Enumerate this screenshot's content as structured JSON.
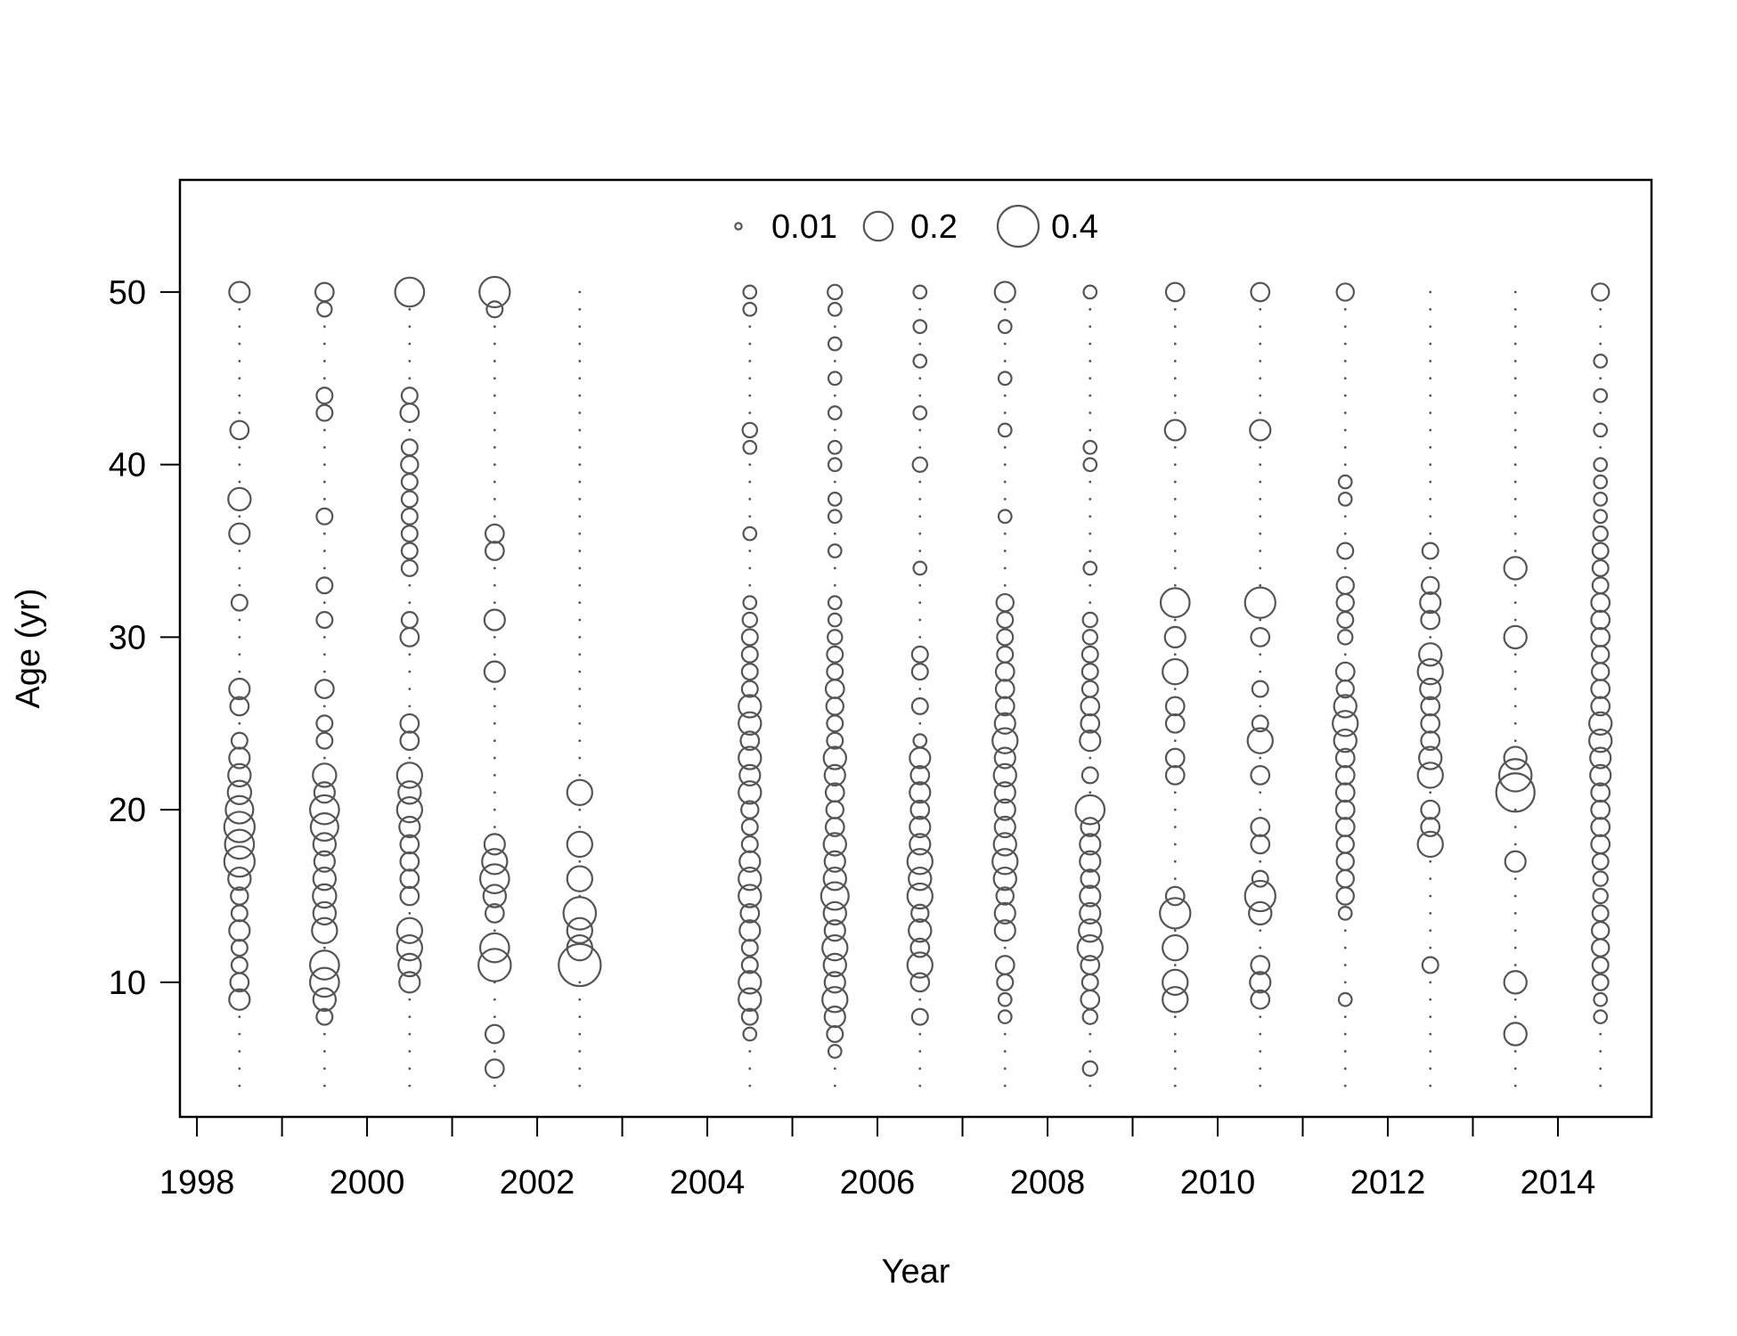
{
  "chart_data": {
    "type": "scatter",
    "subtype": "bubble",
    "title": "",
    "xlabel": "Year",
    "ylabel": "Age (yr)",
    "xlim": [
      1997.8,
      2015.1
    ],
    "ylim": [
      2.2,
      56.5
    ],
    "x_ticks": [
      1998,
      1999,
      2000,
      2001,
      2002,
      2003,
      2004,
      2005,
      2006,
      2007,
      2008,
      2009,
      2010,
      2011,
      2012,
      2013,
      2014
    ],
    "x_tick_labels": [
      "1998",
      "2000",
      "2002",
      "2004",
      "2006",
      "2008",
      "2010",
      "2012",
      "2014"
    ],
    "y_ticks": [
      10,
      20,
      30,
      40,
      50
    ],
    "y_tick_labels": [
      "10",
      "20",
      "30",
      "40",
      "50"
    ],
    "legend": {
      "position": "top",
      "entries": [
        {
          "label": "0.01",
          "value": 0.01
        },
        {
          "label": "0.2",
          "value": 0.2
        },
        {
          "label": "0.4",
          "value": 0.4
        }
      ]
    },
    "grid": false,
    "symbol_color": "#555555",
    "age_range": [
      4,
      50
    ],
    "years": [
      1998.5,
      1999.5,
      2000.5,
      2001.5,
      2002.5,
      2004.5,
      2005.5,
      2006.5,
      2007.5,
      2008.5,
      2009.5,
      2010.5,
      2011.5,
      2012.5,
      2013.5,
      2014.5
    ],
    "series": [
      {
        "year": 1998.5,
        "points": {
          "9": 0.1,
          "10": 0.08,
          "11": 0.06,
          "12": 0.06,
          "13": 0.1,
          "14": 0.06,
          "15": 0.07,
          "16": 0.12,
          "17": 0.22,
          "18": 0.2,
          "19": 0.22,
          "20": 0.18,
          "21": 0.13,
          "22": 0.12,
          "23": 0.1,
          "24": 0.06,
          "26": 0.08,
          "27": 0.1,
          "32": 0.06,
          "36": 0.1,
          "38": 0.12,
          "42": 0.08,
          "50": 0.1
        }
      },
      {
        "year": 1999.5,
        "points": {
          "8": 0.06,
          "9": 0.12,
          "10": 0.2,
          "11": 0.2,
          "13": 0.15,
          "14": 0.12,
          "15": 0.13,
          "16": 0.12,
          "17": 0.1,
          "18": 0.12,
          "19": 0.18,
          "20": 0.2,
          "21": 0.1,
          "22": 0.13,
          "24": 0.06,
          "25": 0.06,
          "27": 0.08,
          "31": 0.06,
          "33": 0.06,
          "37": 0.06,
          "43": 0.06,
          "44": 0.06,
          "49": 0.05,
          "50": 0.08
        }
      },
      {
        "year": 2000.5,
        "points": {
          "10": 0.1,
          "11": 0.12,
          "12": 0.15,
          "13": 0.15,
          "15": 0.08,
          "16": 0.08,
          "17": 0.08,
          "18": 0.08,
          "19": 0.1,
          "20": 0.15,
          "21": 0.12,
          "22": 0.15,
          "24": 0.08,
          "25": 0.08,
          "30": 0.08,
          "31": 0.06,
          "34": 0.06,
          "35": 0.06,
          "36": 0.06,
          "37": 0.06,
          "38": 0.06,
          "39": 0.06,
          "40": 0.07,
          "41": 0.06,
          "43": 0.08,
          "44": 0.06,
          "50": 0.2
        }
      },
      {
        "year": 2001.5,
        "points": {
          "5": 0.08,
          "7": 0.08,
          "11": 0.25,
          "12": 0.2,
          "14": 0.08,
          "15": 0.12,
          "16": 0.2,
          "17": 0.15,
          "18": 0.1,
          "28": 0.1,
          "31": 0.1,
          "35": 0.08,
          "36": 0.08,
          "49": 0.06,
          "50": 0.22
        }
      },
      {
        "year": 2002.5,
        "points": {
          "11": 0.42,
          "12": 0.15,
          "13": 0.15,
          "14": 0.25,
          "16": 0.15,
          "18": 0.15,
          "21": 0.15
        }
      },
      {
        "year": 2004.5,
        "points": {
          "7": 0.04,
          "8": 0.06,
          "9": 0.12,
          "10": 0.12,
          "11": 0.06,
          "12": 0.06,
          "13": 0.1,
          "14": 0.08,
          "15": 0.12,
          "16": 0.12,
          "17": 0.1,
          "18": 0.06,
          "19": 0.06,
          "20": 0.07,
          "21": 0.12,
          "22": 0.1,
          "23": 0.12,
          "24": 0.08,
          "25": 0.12,
          "26": 0.12,
          "27": 0.06,
          "28": 0.06,
          "29": 0.06,
          "30": 0.06,
          "31": 0.05,
          "32": 0.04,
          "36": 0.04,
          "41": 0.04,
          "42": 0.05,
          "49": 0.04,
          "50": 0.04
        }
      },
      {
        "year": 2005.5,
        "points": {
          "6": 0.04,
          "7": 0.06,
          "8": 0.1,
          "9": 0.15,
          "10": 0.1,
          "11": 0.12,
          "12": 0.15,
          "13": 0.1,
          "14": 0.12,
          "15": 0.18,
          "16": 0.12,
          "17": 0.1,
          "18": 0.12,
          "19": 0.08,
          "20": 0.07,
          "21": 0.08,
          "22": 0.1,
          "23": 0.12,
          "24": 0.06,
          "25": 0.06,
          "26": 0.07,
          "27": 0.08,
          "28": 0.06,
          "29": 0.06,
          "30": 0.05,
          "31": 0.04,
          "32": 0.04,
          "35": 0.04,
          "37": 0.04,
          "38": 0.04,
          "40": 0.04,
          "41": 0.04,
          "43": 0.04,
          "45": 0.04,
          "47": 0.04,
          "49": 0.04,
          "50": 0.05
        }
      },
      {
        "year": 2006.5,
        "points": {
          "8": 0.06,
          "10": 0.08,
          "11": 0.15,
          "12": 0.08,
          "13": 0.12,
          "14": 0.07,
          "15": 0.15,
          "16": 0.12,
          "17": 0.15,
          "18": 0.1,
          "19": 0.1,
          "20": 0.08,
          "21": 0.1,
          "22": 0.08,
          "23": 0.1,
          "24": 0.04,
          "26": 0.06,
          "28": 0.06,
          "29": 0.06,
          "34": 0.04,
          "40": 0.05,
          "43": 0.04,
          "46": 0.04,
          "48": 0.04,
          "50": 0.04
        }
      },
      {
        "year": 2007.5,
        "points": {
          "8": 0.04,
          "9": 0.04,
          "10": 0.06,
          "11": 0.08,
          "13": 0.1,
          "14": 0.1,
          "15": 0.07,
          "16": 0.12,
          "17": 0.15,
          "18": 0.12,
          "19": 0.1,
          "20": 0.1,
          "21": 0.1,
          "22": 0.12,
          "23": 0.1,
          "24": 0.15,
          "25": 0.1,
          "26": 0.08,
          "27": 0.08,
          "28": 0.08,
          "29": 0.06,
          "30": 0.06,
          "31": 0.06,
          "32": 0.07,
          "37": 0.04,
          "42": 0.04,
          "45": 0.04,
          "48": 0.04,
          "50": 0.1
        }
      },
      {
        "year": 2008.5,
        "points": {
          "5": 0.05,
          "8": 0.05,
          "9": 0.08,
          "10": 0.06,
          "11": 0.08,
          "12": 0.15,
          "13": 0.12,
          "14": 0.1,
          "15": 0.1,
          "16": 0.08,
          "17": 0.1,
          "18": 0.1,
          "19": 0.08,
          "20": 0.2,
          "22": 0.06,
          "24": 0.1,
          "25": 0.08,
          "26": 0.08,
          "27": 0.06,
          "28": 0.06,
          "29": 0.06,
          "30": 0.05,
          "31": 0.05,
          "34": 0.04,
          "40": 0.04,
          "41": 0.04,
          "50": 0.04
        }
      },
      {
        "year": 2009.5,
        "points": {
          "9": 0.15,
          "10": 0.15,
          "12": 0.15,
          "14": 0.22,
          "15": 0.08,
          "22": 0.08,
          "23": 0.08,
          "25": 0.08,
          "26": 0.08,
          "28": 0.15,
          "30": 0.1,
          "32": 0.2,
          "42": 0.1,
          "50": 0.08
        }
      },
      {
        "year": 2010.5,
        "points": {
          "9": 0.08,
          "10": 0.1,
          "11": 0.08,
          "14": 0.12,
          "15": 0.22,
          "16": 0.06,
          "18": 0.08,
          "19": 0.08,
          "22": 0.08,
          "24": 0.15,
          "25": 0.06,
          "27": 0.06,
          "30": 0.08,
          "32": 0.22,
          "42": 0.1,
          "50": 0.08
        }
      },
      {
        "year": 2011.5,
        "points": {
          "9": 0.04,
          "14": 0.04,
          "15": 0.07,
          "16": 0.07,
          "17": 0.07,
          "18": 0.07,
          "19": 0.08,
          "20": 0.08,
          "21": 0.08,
          "22": 0.08,
          "23": 0.08,
          "24": 0.12,
          "25": 0.15,
          "26": 0.12,
          "27": 0.07,
          "28": 0.08,
          "30": 0.05,
          "31": 0.06,
          "32": 0.07,
          "33": 0.07,
          "35": 0.06,
          "38": 0.04,
          "39": 0.04,
          "50": 0.07
        }
      },
      {
        "year": 2012.5,
        "points": {
          "11": 0.06,
          "18": 0.15,
          "19": 0.08,
          "20": 0.08,
          "22": 0.15,
          "23": 0.12,
          "24": 0.08,
          "25": 0.08,
          "26": 0.08,
          "27": 0.1,
          "28": 0.15,
          "29": 0.12,
          "31": 0.08,
          "32": 0.1,
          "33": 0.07,
          "35": 0.06
        }
      },
      {
        "year": 2013.5,
        "points": {
          "7": 0.12,
          "10": 0.12,
          "17": 0.1,
          "21": 0.35,
          "22": 0.25,
          "23": 0.12,
          "30": 0.12,
          "34": 0.12
        }
      },
      {
        "year": 2014.5,
        "points": {
          "8": 0.04,
          "9": 0.04,
          "10": 0.06,
          "11": 0.06,
          "12": 0.07,
          "13": 0.07,
          "14": 0.06,
          "15": 0.05,
          "16": 0.05,
          "17": 0.06,
          "18": 0.08,
          "19": 0.08,
          "20": 0.08,
          "21": 0.08,
          "22": 0.1,
          "23": 0.1,
          "24": 0.12,
          "25": 0.12,
          "26": 0.08,
          "27": 0.08,
          "28": 0.07,
          "29": 0.07,
          "30": 0.08,
          "31": 0.08,
          "32": 0.08,
          "33": 0.06,
          "34": 0.06,
          "35": 0.06,
          "36": 0.05,
          "37": 0.04,
          "38": 0.04,
          "39": 0.04,
          "40": 0.04,
          "42": 0.04,
          "44": 0.04,
          "46": 0.04,
          "50": 0.07
        }
      }
    ]
  }
}
